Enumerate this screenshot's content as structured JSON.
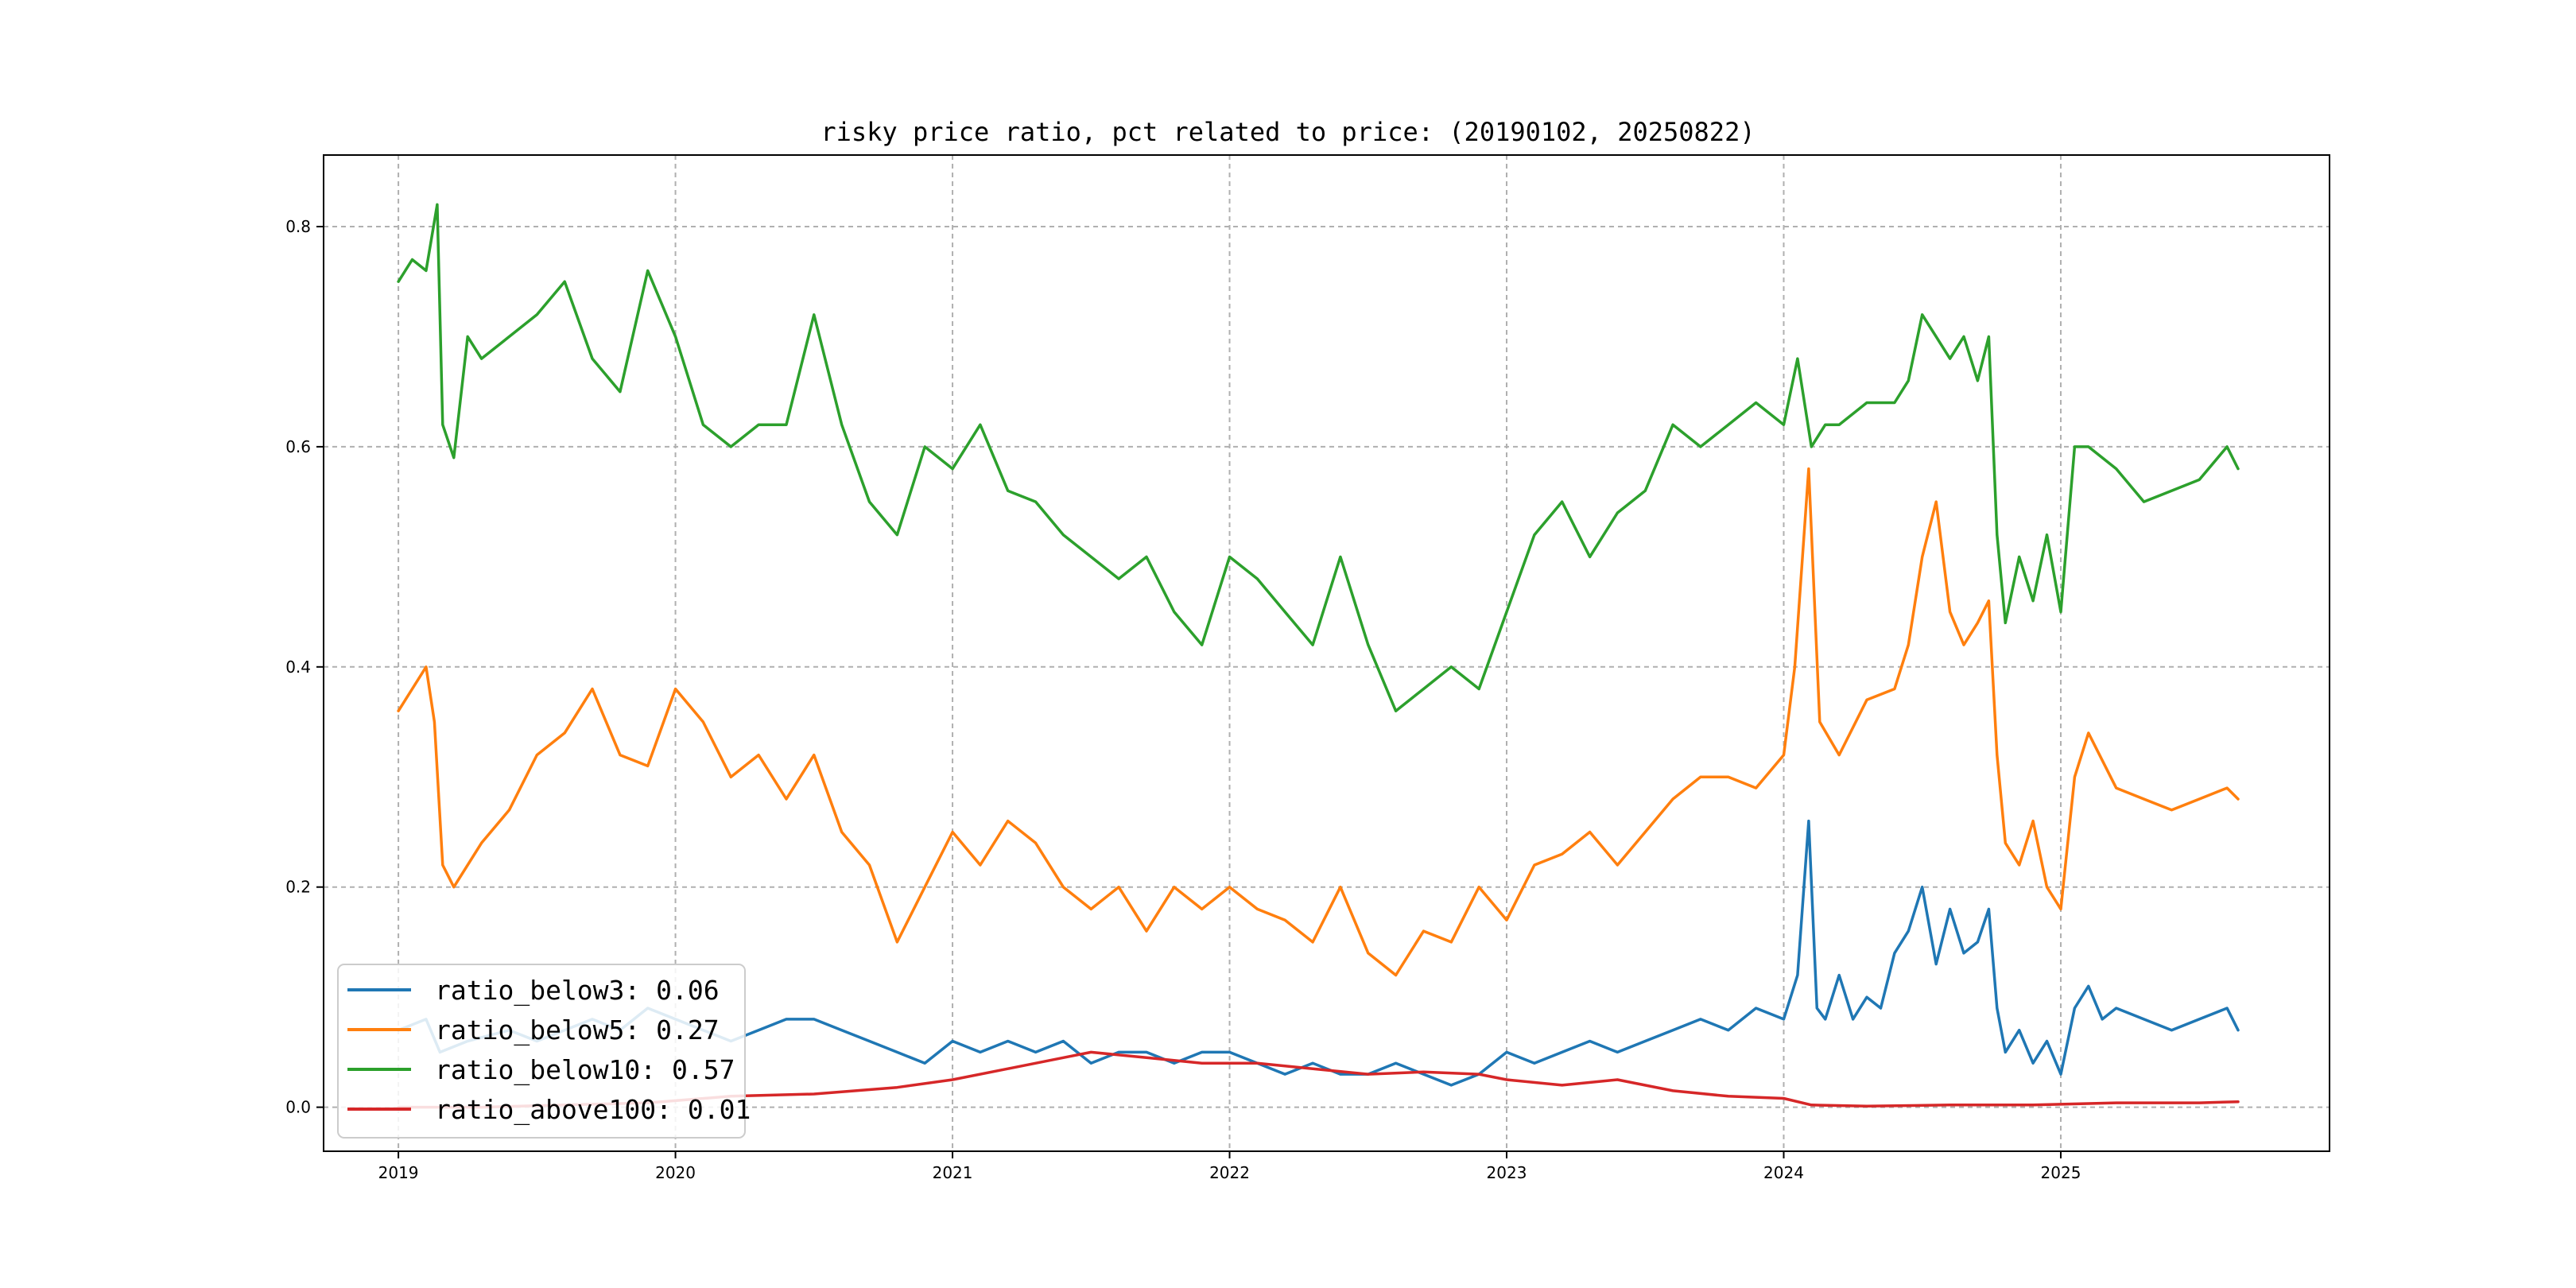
{
  "chart_data": {
    "type": "line",
    "title": "risky price ratio, pct related to price: (20190102, 20250822)",
    "xlabel": "",
    "ylabel": "",
    "x_range": [
      "2019-01-02",
      "2025-08-22"
    ],
    "xlim": [
      2018.73,
      2025.97
    ],
    "ylim": [
      -0.04,
      0.865
    ],
    "x_ticks": [
      2019,
      2020,
      2021,
      2022,
      2023,
      2024,
      2025
    ],
    "x_tick_labels": [
      "2019",
      "2020",
      "2021",
      "2022",
      "2023",
      "2024",
      "2025"
    ],
    "y_ticks": [
      0.0,
      0.2,
      0.4,
      0.6,
      0.8
    ],
    "y_tick_labels": [
      "0.0",
      "0.2",
      "0.4",
      "0.6",
      "0.8"
    ],
    "grid": true,
    "legend_position": "lower-left",
    "series": [
      {
        "name": "ratio_below3",
        "legend_label": "ratio_below3: 0.06",
        "color": "#1f77b4",
        "x": [
          2019.0,
          2019.1,
          2019.15,
          2019.25,
          2019.4,
          2019.5,
          2019.6,
          2019.7,
          2019.8,
          2019.9,
          2020.0,
          2020.1,
          2020.2,
          2020.3,
          2020.4,
          2020.5,
          2020.6,
          2020.7,
          2020.8,
          2020.9,
          2021.0,
          2021.1,
          2021.2,
          2021.3,
          2021.4,
          2021.5,
          2021.6,
          2021.7,
          2021.8,
          2021.9,
          2022.0,
          2022.1,
          2022.2,
          2022.3,
          2022.4,
          2022.5,
          2022.6,
          2022.7,
          2022.8,
          2022.9,
          2023.0,
          2023.1,
          2023.2,
          2023.3,
          2023.4,
          2023.5,
          2023.6,
          2023.7,
          2023.8,
          2023.9,
          2024.0,
          2024.05,
          2024.09,
          2024.12,
          2024.15,
          2024.2,
          2024.25,
          2024.3,
          2024.35,
          2024.4,
          2024.45,
          2024.5,
          2024.55,
          2024.6,
          2024.65,
          2024.7,
          2024.74,
          2024.77,
          2024.8,
          2024.85,
          2024.9,
          2024.95,
          2025.0,
          2025.05,
          2025.1,
          2025.15,
          2025.2,
          2025.3,
          2025.4,
          2025.5,
          2025.6,
          2025.64
        ],
        "values": [
          0.07,
          0.08,
          0.05,
          0.06,
          0.07,
          0.06,
          0.07,
          0.08,
          0.07,
          0.09,
          0.08,
          0.07,
          0.06,
          0.07,
          0.08,
          0.08,
          0.07,
          0.06,
          0.05,
          0.04,
          0.06,
          0.05,
          0.06,
          0.05,
          0.06,
          0.04,
          0.05,
          0.05,
          0.04,
          0.05,
          0.05,
          0.04,
          0.03,
          0.04,
          0.03,
          0.03,
          0.04,
          0.03,
          0.02,
          0.03,
          0.05,
          0.04,
          0.05,
          0.06,
          0.05,
          0.06,
          0.07,
          0.08,
          0.07,
          0.09,
          0.08,
          0.12,
          0.26,
          0.09,
          0.08,
          0.12,
          0.08,
          0.1,
          0.09,
          0.14,
          0.16,
          0.2,
          0.13,
          0.18,
          0.14,
          0.15,
          0.18,
          0.09,
          0.05,
          0.07,
          0.04,
          0.06,
          0.03,
          0.09,
          0.11,
          0.08,
          0.09,
          0.08,
          0.07,
          0.08,
          0.09,
          0.07
        ]
      },
      {
        "name": "ratio_below5",
        "legend_label": "ratio_below5: 0.27",
        "color": "#ff7f0e",
        "x": [
          2019.0,
          2019.05,
          2019.1,
          2019.13,
          2019.16,
          2019.2,
          2019.3,
          2019.4,
          2019.5,
          2019.6,
          2019.7,
          2019.8,
          2019.9,
          2020.0,
          2020.1,
          2020.2,
          2020.3,
          2020.4,
          2020.5,
          2020.6,
          2020.7,
          2020.8,
          2020.9,
          2021.0,
          2021.1,
          2021.2,
          2021.3,
          2021.4,
          2021.5,
          2021.6,
          2021.7,
          2021.8,
          2021.9,
          2022.0,
          2022.1,
          2022.2,
          2022.3,
          2022.4,
          2022.5,
          2022.6,
          2022.7,
          2022.8,
          2022.9,
          2023.0,
          2023.1,
          2023.2,
          2023.3,
          2023.4,
          2023.5,
          2023.6,
          2023.7,
          2023.8,
          2023.9,
          2024.0,
          2024.04,
          2024.09,
          2024.13,
          2024.2,
          2024.3,
          2024.4,
          2024.45,
          2024.5,
          2024.55,
          2024.6,
          2024.65,
          2024.7,
          2024.74,
          2024.77,
          2024.8,
          2024.85,
          2024.9,
          2024.95,
          2025.0,
          2025.05,
          2025.1,
          2025.2,
          2025.3,
          2025.4,
          2025.5,
          2025.6,
          2025.64
        ],
        "values": [
          0.36,
          0.38,
          0.4,
          0.35,
          0.22,
          0.2,
          0.24,
          0.27,
          0.32,
          0.34,
          0.38,
          0.32,
          0.31,
          0.38,
          0.35,
          0.3,
          0.32,
          0.28,
          0.32,
          0.25,
          0.22,
          0.15,
          0.2,
          0.25,
          0.22,
          0.26,
          0.24,
          0.2,
          0.18,
          0.2,
          0.16,
          0.2,
          0.18,
          0.2,
          0.18,
          0.17,
          0.15,
          0.2,
          0.14,
          0.12,
          0.16,
          0.15,
          0.2,
          0.17,
          0.22,
          0.23,
          0.25,
          0.22,
          0.25,
          0.28,
          0.3,
          0.3,
          0.29,
          0.32,
          0.4,
          0.58,
          0.35,
          0.32,
          0.37,
          0.38,
          0.42,
          0.5,
          0.55,
          0.45,
          0.42,
          0.44,
          0.46,
          0.32,
          0.24,
          0.22,
          0.26,
          0.2,
          0.18,
          0.3,
          0.34,
          0.29,
          0.28,
          0.27,
          0.28,
          0.29,
          0.28
        ]
      },
      {
        "name": "ratio_below10",
        "legend_label": "ratio_below10: 0.57",
        "color": "#2ca02c",
        "x": [
          2019.0,
          2019.05,
          2019.1,
          2019.14,
          2019.16,
          2019.2,
          2019.25,
          2019.3,
          2019.4,
          2019.5,
          2019.6,
          2019.7,
          2019.8,
          2019.9,
          2020.0,
          2020.1,
          2020.2,
          2020.3,
          2020.4,
          2020.5,
          2020.6,
          2020.7,
          2020.8,
          2020.9,
          2021.0,
          2021.1,
          2021.2,
          2021.3,
          2021.4,
          2021.5,
          2021.6,
          2021.7,
          2021.8,
          2021.9,
          2022.0,
          2022.1,
          2022.2,
          2022.3,
          2022.4,
          2022.5,
          2022.6,
          2022.7,
          2022.8,
          2022.9,
          2023.0,
          2023.1,
          2023.2,
          2023.3,
          2023.4,
          2023.5,
          2023.6,
          2023.7,
          2023.8,
          2023.9,
          2024.0,
          2024.05,
          2024.1,
          2024.15,
          2024.2,
          2024.3,
          2024.4,
          2024.45,
          2024.5,
          2024.55,
          2024.6,
          2024.65,
          2024.7,
          2024.74,
          2024.77,
          2024.8,
          2024.85,
          2024.9,
          2024.95,
          2025.0,
          2025.05,
          2025.1,
          2025.2,
          2025.3,
          2025.4,
          2025.5,
          2025.6,
          2025.64
        ],
        "values": [
          0.75,
          0.77,
          0.76,
          0.82,
          0.62,
          0.59,
          0.7,
          0.68,
          0.7,
          0.72,
          0.75,
          0.68,
          0.65,
          0.76,
          0.7,
          0.62,
          0.6,
          0.62,
          0.62,
          0.72,
          0.62,
          0.55,
          0.52,
          0.6,
          0.58,
          0.62,
          0.56,
          0.55,
          0.52,
          0.5,
          0.48,
          0.5,
          0.45,
          0.42,
          0.5,
          0.48,
          0.45,
          0.42,
          0.5,
          0.42,
          0.36,
          0.38,
          0.4,
          0.38,
          0.45,
          0.52,
          0.55,
          0.5,
          0.54,
          0.56,
          0.62,
          0.6,
          0.62,
          0.64,
          0.62,
          0.68,
          0.6,
          0.62,
          0.62,
          0.64,
          0.64,
          0.66,
          0.72,
          0.7,
          0.68,
          0.7,
          0.66,
          0.7,
          0.52,
          0.44,
          0.5,
          0.46,
          0.52,
          0.45,
          0.6,
          0.6,
          0.58,
          0.55,
          0.56,
          0.57,
          0.6,
          0.58
        ]
      },
      {
        "name": "ratio_above100",
        "legend_label": "ratio_above100: 0.01",
        "color": "#d62728",
        "x": [
          2019.0,
          2019.3,
          2019.6,
          2019.9,
          2020.2,
          2020.5,
          2020.8,
          2021.0,
          2021.2,
          2021.4,
          2021.5,
          2021.7,
          2021.9,
          2022.1,
          2022.3,
          2022.5,
          2022.7,
          2022.9,
          2023.0,
          2023.2,
          2023.4,
          2023.6,
          2023.8,
          2024.0,
          2024.1,
          2024.3,
          2024.6,
          2024.9,
          2025.2,
          2025.5,
          2025.64
        ],
        "values": [
          0.0,
          0.0,
          0.002,
          0.004,
          0.01,
          0.012,
          0.018,
          0.025,
          0.035,
          0.045,
          0.05,
          0.045,
          0.04,
          0.04,
          0.035,
          0.03,
          0.032,
          0.03,
          0.025,
          0.02,
          0.025,
          0.015,
          0.01,
          0.008,
          0.002,
          0.001,
          0.002,
          0.002,
          0.004,
          0.004,
          0.005
        ]
      }
    ]
  }
}
